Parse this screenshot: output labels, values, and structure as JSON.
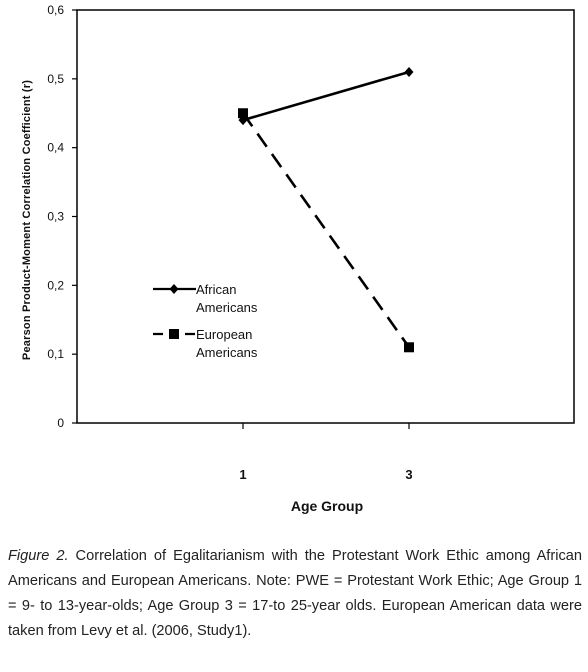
{
  "chart_data": {
    "type": "line",
    "categories": [
      "1",
      "3"
    ],
    "xlabel": "Age Group",
    "ylabel": "Pearson Product-Moment Correlation Coefficient (r)",
    "ylim": [
      0,
      0.6
    ],
    "yticks": [
      "0",
      "0,1",
      "0,2",
      "0,3",
      "0,4",
      "0,5",
      "0,6"
    ],
    "grid": false,
    "legend_position": "left",
    "series": [
      {
        "name": "African\nAmericans",
        "legend_lines": [
          "African",
          "Americans"
        ],
        "values": [
          0.44,
          0.51
        ],
        "marker": "diamond",
        "line_style": "solid",
        "color": "#000000"
      },
      {
        "name": "European\nAmericans",
        "legend_lines": [
          "European",
          "Americans"
        ],
        "values": [
          0.45,
          0.11
        ],
        "marker": "square",
        "line_style": "dashed",
        "color": "#000000"
      }
    ]
  },
  "caption": {
    "label": "Figure 2.",
    "text": " Correlation of Egalitarianism with the Protestant Work Ethic among African Americans and European Americans. Note: PWE = Protestant Work Ethic; Age Group 1 = 9- to 13-year-olds; Age Group 3 = 17-to 25-year olds. European American data were taken from Levy et al. (2006, Study1)."
  }
}
